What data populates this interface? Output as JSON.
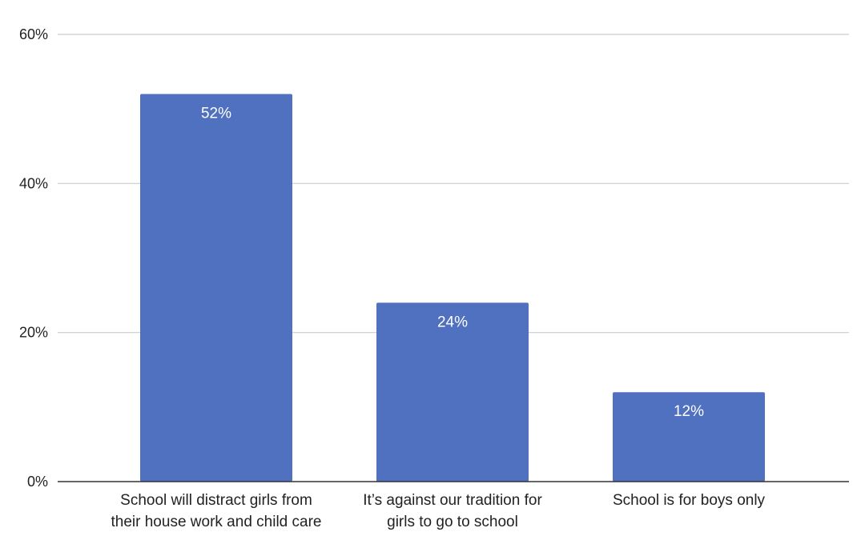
{
  "chart_data": {
    "type": "bar",
    "title": "",
    "xlabel": "",
    "ylabel": "",
    "categories": [
      [
        "School will distract girls from",
        "their house work and child care"
      ],
      [
        "It’s against our tradition for",
        "girls to go to school"
      ],
      [
        "School is for boys only"
      ]
    ],
    "values": [
      52,
      24,
      12
    ],
    "data_labels": [
      "52%",
      "24%",
      "12%"
    ],
    "ylim": [
      0,
      60
    ],
    "yticks": [
      0,
      20,
      40,
      60
    ],
    "ytick_labels": [
      "0%",
      "20%",
      "40%",
      "60%"
    ],
    "grid": true,
    "legend": "none",
    "colors": {
      "bar": "#5070c0",
      "grid": "#cccccc",
      "axis": "#333333"
    }
  }
}
